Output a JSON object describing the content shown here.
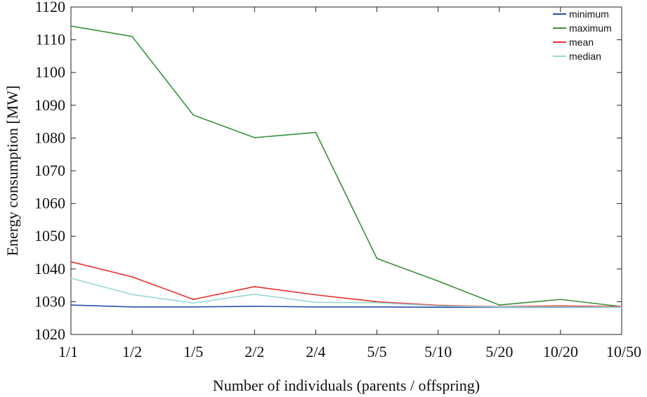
{
  "chart_data": {
    "type": "line",
    "title": "",
    "xlabel": "Number of individuals (parents / offspring)",
    "ylabel": "Energy consumption [MW]",
    "categories": [
      "1/1",
      "1/2",
      "1/5",
      "2/2",
      "2/4",
      "5/5",
      "5/10",
      "5/20",
      "10/20",
      "10/50"
    ],
    "ylim": [
      1020,
      1120
    ],
    "yticks": [
      1020,
      1030,
      1040,
      1050,
      1060,
      1070,
      1080,
      1090,
      1100,
      1110,
      1120
    ],
    "grid": false,
    "legend_position": "top-right",
    "series": [
      {
        "name": "minimum",
        "color": "#2a4fa8",
        "values": [
          1029.0,
          1028.4,
          1028.4,
          1028.6,
          1028.4,
          1028.4,
          1028.3,
          1028.3,
          1028.3,
          1028.3
        ]
      },
      {
        "name": "maximum",
        "color": "#3b8f3b",
        "values": [
          1114.2,
          1111.0,
          1087.0,
          1080.1,
          1081.7,
          1043.2,
          1036.3,
          1029.0,
          1030.7,
          1028.5
        ]
      },
      {
        "name": "mean",
        "color": "#e8312a",
        "values": [
          1042.2,
          1037.6,
          1030.7,
          1034.6,
          1032.1,
          1030.0,
          1028.9,
          1028.5,
          1028.7,
          1028.5
        ]
      },
      {
        "name": "median",
        "color": "#98d8d8",
        "values": [
          1037.2,
          1032.2,
          1029.6,
          1032.3,
          1029.8,
          1029.7,
          1028.7,
          1028.4,
          1028.4,
          1028.3
        ]
      }
    ]
  }
}
